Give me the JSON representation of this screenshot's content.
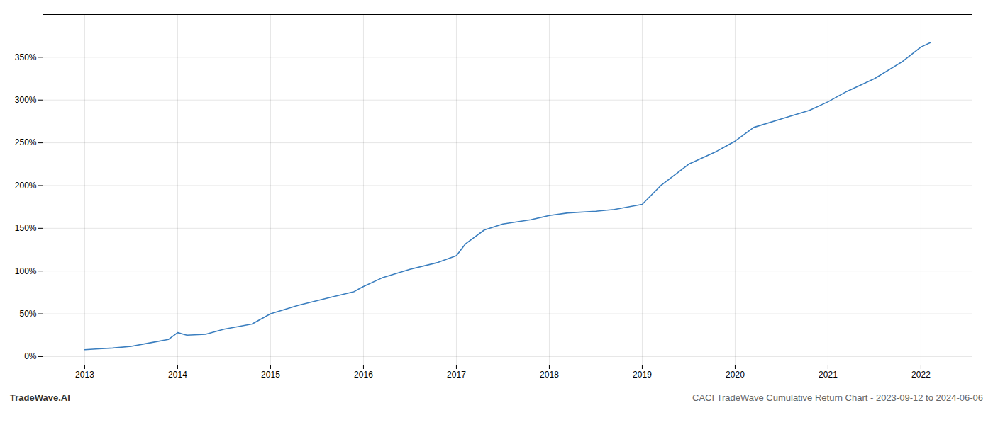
{
  "chart_data": {
    "type": "line",
    "title": "CACI TradeWave Cumulative Return Chart - 2023-09-12 to 2024-06-06",
    "annotations": [
      "TradeWave.AI"
    ],
    "x": [
      2013.0,
      2013.15,
      2013.3,
      2013.5,
      2013.7,
      2013.9,
      2014.0,
      2014.1,
      2014.3,
      2014.5,
      2014.8,
      2015.0,
      2015.3,
      2015.6,
      2015.9,
      2016.0,
      2016.2,
      2016.5,
      2016.8,
      2017.0,
      2017.1,
      2017.3,
      2017.5,
      2017.8,
      2018.0,
      2018.2,
      2018.5,
      2018.7,
      2019.0,
      2019.2,
      2019.5,
      2019.8,
      2020.0,
      2020.2,
      2020.5,
      2020.8,
      2021.0,
      2021.2,
      2021.5,
      2021.8,
      2022.0,
      2022.1
    ],
    "values": [
      8,
      9,
      10,
      12,
      16,
      20,
      28,
      25,
      26,
      32,
      38,
      50,
      60,
      68,
      76,
      82,
      92,
      102,
      110,
      118,
      132,
      148,
      155,
      160,
      165,
      168,
      170,
      172,
      178,
      200,
      225,
      240,
      252,
      268,
      278,
      288,
      298,
      310,
      325,
      345,
      362,
      367
    ],
    "color": "#3a7ebf",
    "xlim": [
      2012.55,
      2022.55
    ],
    "xticks": [
      2013,
      2014,
      2015,
      2016,
      2017,
      2018,
      2019,
      2020,
      2021,
      2022
    ],
    "ylim": [
      -10,
      400
    ],
    "yticks": [
      {
        "value": 0,
        "label": "0%"
      },
      {
        "value": 50,
        "label": "50%"
      },
      {
        "value": 100,
        "label": "100%"
      },
      {
        "value": 150,
        "label": "150%"
      },
      {
        "value": 200,
        "label": "200%"
      },
      {
        "value": 250,
        "label": "250%"
      },
      {
        "value": 300,
        "label": "300%"
      },
      {
        "value": 350,
        "label": "350%"
      }
    ],
    "grid": true
  }
}
